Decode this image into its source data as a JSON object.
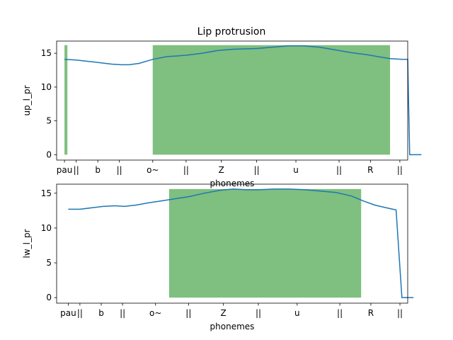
{
  "title": "Lip protrusion",
  "colors": {
    "line": "#1f77b4",
    "bar": "#7fbf7f",
    "axis": "#000000"
  },
  "chart_data": [
    {
      "type": "line",
      "ylabel": "up_l_pr",
      "xlabel": "phonemes",
      "xlim": [
        -0.4,
        17.5
      ],
      "ylim": [
        -0.8,
        16.8
      ],
      "yticks": [
        0,
        5,
        10,
        15
      ],
      "xticks": [
        {
          "x": 0,
          "label": "pau"
        },
        {
          "x": 0.6,
          "label": "||"
        },
        {
          "x": 1.7,
          "label": "b"
        },
        {
          "x": 2.8,
          "label": "||"
        },
        {
          "x": 4.5,
          "label": "o~"
        },
        {
          "x": 6.2,
          "label": "||"
        },
        {
          "x": 8.0,
          "label": "Z"
        },
        {
          "x": 9.8,
          "label": "||"
        },
        {
          "x": 11.8,
          "label": "u"
        },
        {
          "x": 14.0,
          "label": "||"
        },
        {
          "x": 15.6,
          "label": "R"
        },
        {
          "x": 17.1,
          "label": "||"
        }
      ],
      "bars": [
        {
          "x0": 0,
          "x1": 0.15,
          "height": 16.2
        },
        {
          "x0": 4.5,
          "x1": 16.6,
          "height": 16.2
        }
      ],
      "line": {
        "x": [
          0,
          0.6,
          1.2,
          1.8,
          2.4,
          2.9,
          3.3,
          3.8,
          4.5,
          5.2,
          6.2,
          7.0,
          7.8,
          8.6,
          9.8,
          10.6,
          11.4,
          12.2,
          13.0,
          13.8,
          14.6,
          15.4,
          16.0,
          16.6,
          17.2,
          17.5,
          17.6,
          18.2
        ],
        "y": [
          14.1,
          14.0,
          13.8,
          13.6,
          13.4,
          13.3,
          13.3,
          13.5,
          14.1,
          14.5,
          14.7,
          15.0,
          15.4,
          15.6,
          15.7,
          15.9,
          16.1,
          16.1,
          15.9,
          15.5,
          15.1,
          14.8,
          14.5,
          14.2,
          14.1,
          14.1,
          0.0,
          0.0
        ]
      }
    },
    {
      "type": "line",
      "ylabel": "lw_l_pr",
      "xlabel": "phonemes",
      "xlim": [
        -0.6,
        17.5
      ],
      "ylim": [
        -0.8,
        16.3
      ],
      "yticks": [
        0,
        5,
        10,
        15
      ],
      "xticks": [
        {
          "x": 0,
          "label": "pau"
        },
        {
          "x": 0.6,
          "label": "||"
        },
        {
          "x": 1.7,
          "label": "b"
        },
        {
          "x": 2.8,
          "label": "||"
        },
        {
          "x": 4.5,
          "label": "o~"
        },
        {
          "x": 6.2,
          "label": "||"
        },
        {
          "x": 8.0,
          "label": "Z"
        },
        {
          "x": 9.8,
          "label": "||"
        },
        {
          "x": 11.8,
          "label": "u"
        },
        {
          "x": 14.0,
          "label": "||"
        },
        {
          "x": 15.6,
          "label": "R"
        },
        {
          "x": 17.1,
          "label": "||"
        }
      ],
      "bars": [
        {
          "x0": 5.2,
          "x1": 15.1,
          "height": 15.6
        }
      ],
      "line": {
        "x": [
          0,
          0.6,
          1.2,
          1.8,
          2.4,
          2.9,
          3.5,
          4.1,
          4.8,
          5.5,
          6.2,
          7.0,
          7.8,
          8.5,
          9.2,
          9.8,
          10.6,
          11.4,
          12.2,
          13.0,
          13.8,
          14.6,
          15.2,
          15.8,
          16.4,
          16.9,
          17.2,
          17.8
        ],
        "y": [
          12.7,
          12.7,
          12.9,
          13.1,
          13.2,
          13.1,
          13.3,
          13.6,
          13.9,
          14.2,
          14.5,
          15.0,
          15.4,
          15.6,
          15.5,
          15.5,
          15.6,
          15.6,
          15.5,
          15.3,
          15.1,
          14.6,
          13.9,
          13.3,
          12.9,
          12.6,
          0.0,
          0.0
        ]
      }
    }
  ]
}
